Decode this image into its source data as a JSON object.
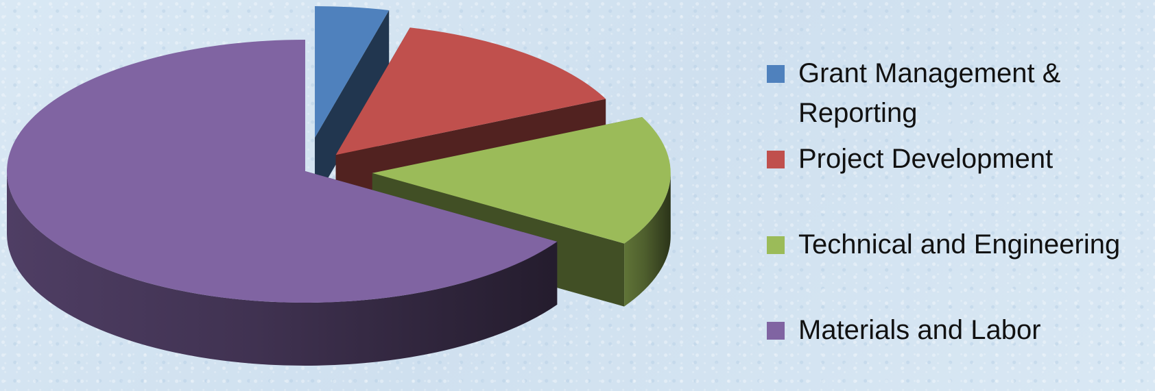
{
  "chart_data": {
    "type": "pie",
    "style": "3d-exploded",
    "title": "",
    "categories": [
      "Grant Management & Reporting",
      "Project Development",
      "Technical and Engineering",
      "Materials and Labor"
    ],
    "values": [
      4,
      14,
      16,
      66
    ],
    "colors": [
      "#4f81bd",
      "#c0504d",
      "#9bbb59",
      "#8064a2"
    ],
    "legend_position": "right",
    "legend_labels": [
      "Grant Management & Reporting",
      "Project Development",
      "Technical and Engineering",
      "Materials and Labor"
    ]
  }
}
